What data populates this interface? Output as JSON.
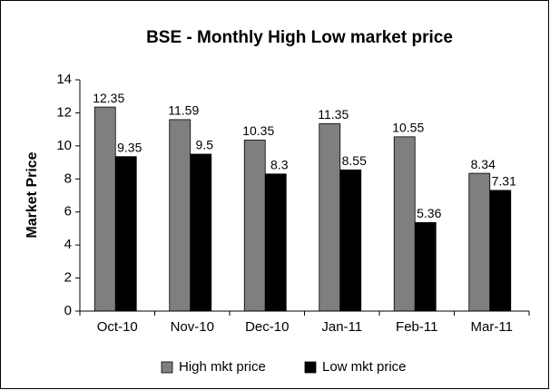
{
  "chart_data": {
    "type": "bar",
    "title": "BSE - Monthly High Low market price",
    "y_label": "Market Price",
    "categories": [
      "Oct-10",
      "Nov-10",
      "Dec-10",
      "Jan-11",
      "Feb-11",
      "Mar-11"
    ],
    "series": [
      {
        "name": "High mkt price",
        "color": "#7f7f7f",
        "values": [
          12.35,
          11.59,
          10.35,
          11.35,
          10.55,
          8.34
        ]
      },
      {
        "name": "Low mkt price",
        "color": "#000000",
        "values": [
          9.35,
          9.5,
          8.3,
          8.55,
          5.36,
          7.31
        ]
      }
    ],
    "ylim": [
      0,
      14
    ],
    "yticks": [
      0,
      2,
      4,
      6,
      8,
      10,
      12,
      14
    ],
    "grid": false,
    "legend": "bottom"
  }
}
